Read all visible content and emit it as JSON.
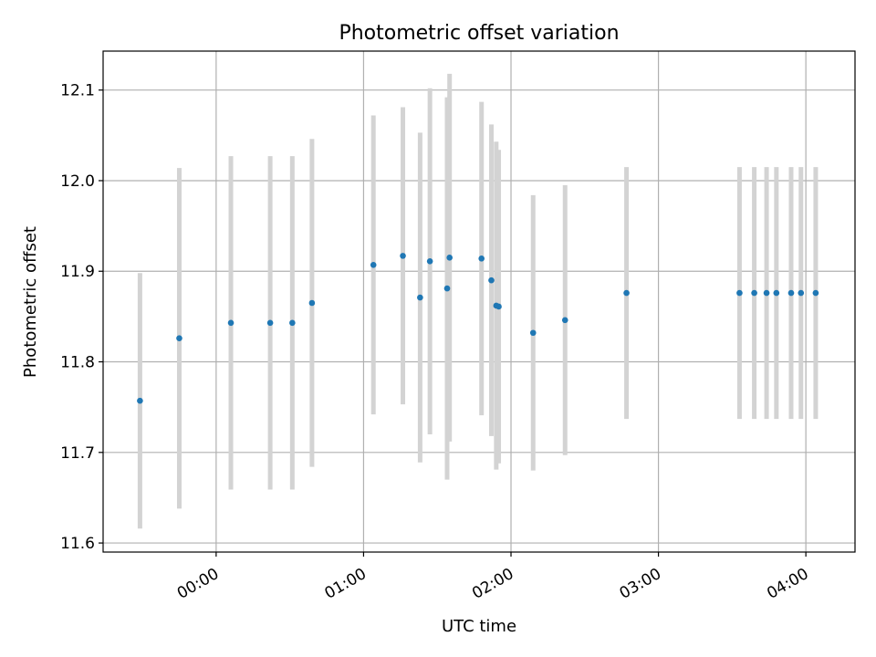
{
  "chart_data": {
    "type": "scatter",
    "title": "Photometric offset variation",
    "xlabel": "UTC time",
    "ylabel": "Photometric offset",
    "x_tick_labels": [
      "00:00",
      "01:00",
      "02:00",
      "03:00",
      "04:00"
    ],
    "x_ticks_minutes": [
      0,
      60,
      120,
      180,
      240
    ],
    "y_tick_labels": [
      "11.6",
      "11.7",
      "11.8",
      "11.9",
      "12.0",
      "12.1"
    ],
    "y_ticks": [
      11.6,
      11.7,
      11.8,
      11.9,
      12.0,
      12.1
    ],
    "xlim_minutes": [
      -46,
      260
    ],
    "ylim": [
      11.59,
      12.143
    ],
    "grid": true,
    "x": [
      "23:29",
      "23:45",
      "00:06",
      "00:22",
      "00:31",
      "00:39",
      "01:04",
      "01:16",
      "01:23",
      "01:27",
      "01:34",
      "01:35",
      "01:48",
      "01:52",
      "01:54",
      "01:55",
      "02:09",
      "02:22",
      "02:47",
      "03:33",
      "03:39",
      "03:44",
      "03:48",
      "03:54",
      "03:58",
      "04:04"
    ],
    "y": [
      11.757,
      11.826,
      11.843,
      11.843,
      11.843,
      11.865,
      11.907,
      11.917,
      11.871,
      11.911,
      11.881,
      11.915,
      11.914,
      11.89,
      11.862,
      11.861,
      11.832,
      11.846,
      11.876,
      11.876,
      11.876,
      11.876,
      11.876,
      11.876,
      11.876,
      11.876
    ],
    "error": [
      0.141,
      0.188,
      0.184,
      0.184,
      0.184,
      0.181,
      0.165,
      0.164,
      0.182,
      0.191,
      0.211,
      0.203,
      0.173,
      0.172,
      0.181,
      0.173,
      0.152,
      0.149,
      0.139,
      0.139,
      0.139,
      0.139,
      0.139,
      0.139,
      0.139,
      0.139
    ],
    "colors": {
      "point": "#1f77b4",
      "errorbar": "#d3d3d3",
      "grid": "#b0b0b0",
      "axes": "#000000"
    }
  }
}
